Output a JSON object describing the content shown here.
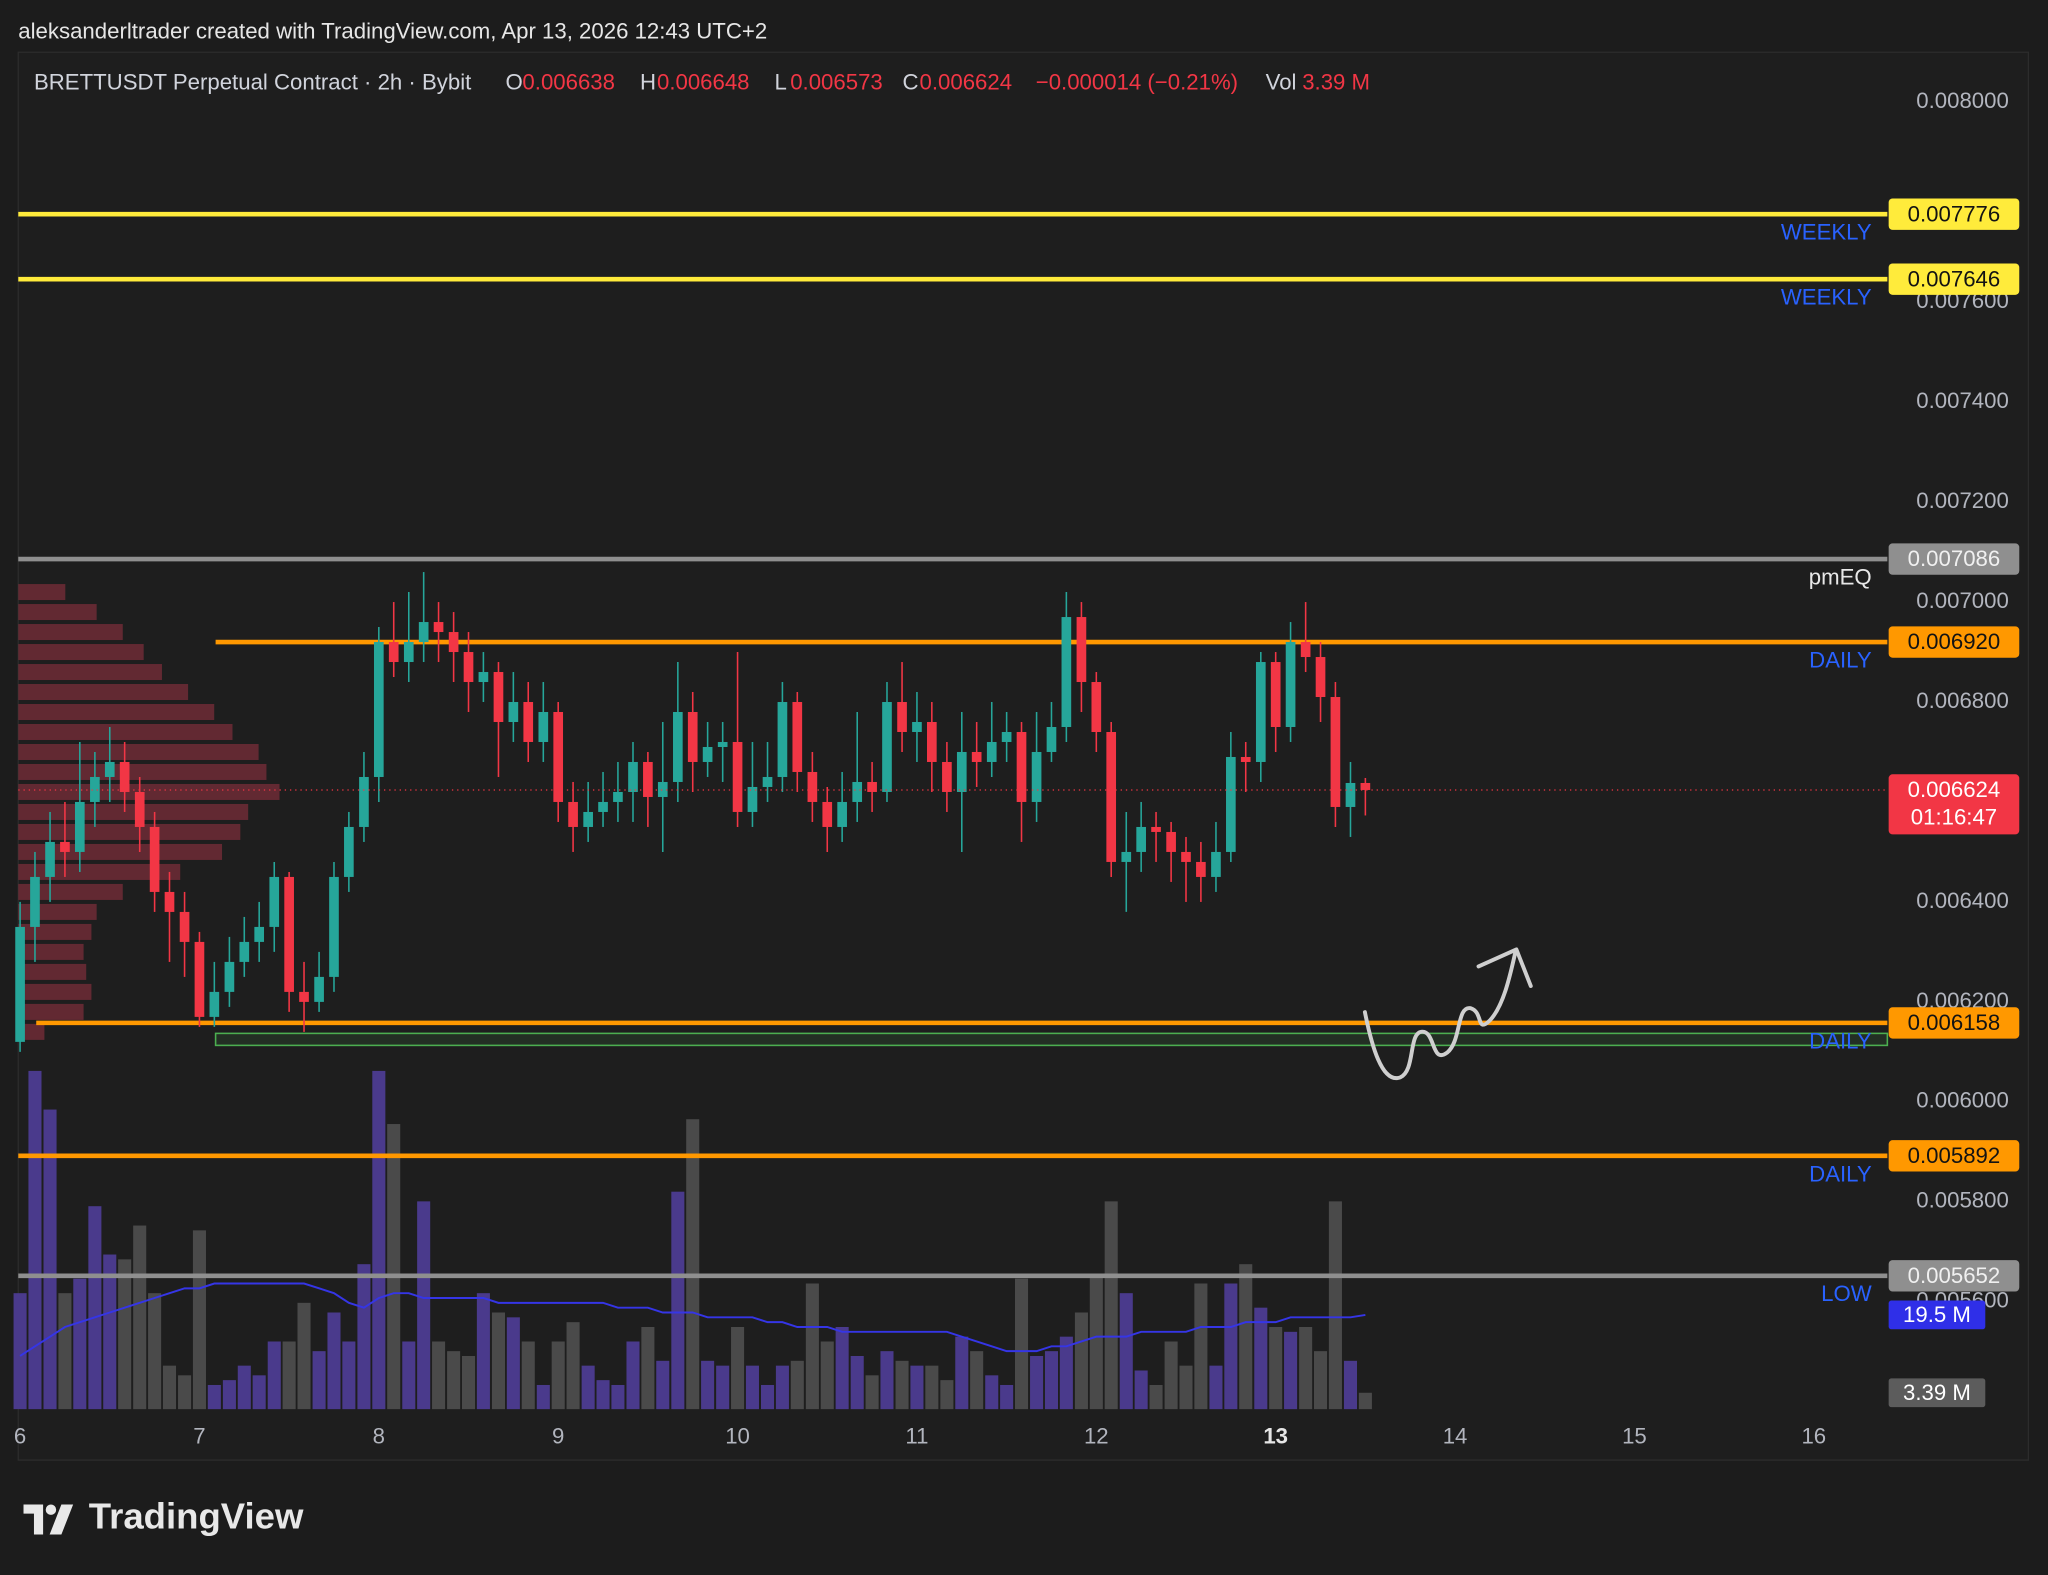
{
  "header": {
    "credit": "aleksanderltrader created with TradingView.com, Apr 13, 2026 12:43 UTC+2",
    "symbol": "BRETTUSDT Perpetual Contract · 2h · Bybit",
    "keys": [
      "O",
      "H",
      "L",
      "C"
    ],
    "change": "−0.000014 (−0.21%)",
    "vol_key": "Vol"
  },
  "chart_data": {
    "type": "candlestick",
    "up_color": "#26a69a",
    "down_color": "#f23645",
    "x": [
      6,
      6.083,
      6.167,
      6.25,
      6.333,
      6.417,
      6.5,
      6.583,
      6.667,
      6.75,
      6.833,
      6.917,
      7,
      7.083,
      7.167,
      7.25,
      7.333,
      7.417,
      7.5,
      7.583,
      7.667,
      7.75,
      7.833,
      7.917,
      8,
      8.083,
      8.167,
      8.25,
      8.333,
      8.417,
      8.5,
      8.583,
      8.667,
      8.75,
      8.833,
      8.917,
      9,
      9.083,
      9.167,
      9.25,
      9.333,
      9.417,
      9.5,
      9.583,
      9.667,
      9.75,
      9.833,
      9.917,
      10,
      10.083,
      10.167,
      10.25,
      10.333,
      10.417,
      10.5,
      10.583,
      10.667,
      10.75,
      10.833,
      10.917,
      11,
      11.083,
      11.167,
      11.25,
      11.333,
      11.417,
      11.5,
      11.583,
      11.667,
      11.75,
      11.833,
      11.917,
      12,
      12.083,
      12.167,
      12.25,
      12.333,
      12.417,
      12.5,
      12.583,
      12.667,
      12.75,
      12.833,
      12.917,
      13,
      13.083,
      13.167,
      13.25,
      13.333,
      13.417,
      13.5
    ],
    "open": [
      0.00612,
      0.00635,
      0.00645,
      0.00652,
      0.0065,
      0.0066,
      0.00665,
      0.00668,
      0.00662,
      0.00655,
      0.00642,
      0.00638,
      0.00632,
      0.00617,
      0.00622,
      0.00628,
      0.00632,
      0.00635,
      0.00645,
      0.00622,
      0.0062,
      0.00625,
      0.00645,
      0.00655,
      0.00665,
      0.00692,
      0.00688,
      0.00692,
      0.00696,
      0.00694,
      0.0069,
      0.00684,
      0.00686,
      0.00676,
      0.0068,
      0.00672,
      0.00678,
      0.0066,
      0.00655,
      0.00658,
      0.0066,
      0.00662,
      0.00668,
      0.00661,
      0.00664,
      0.00678,
      0.00668,
      0.00671,
      0.00672,
      0.00658,
      0.00663,
      0.00665,
      0.0068,
      0.00666,
      0.0066,
      0.00655,
      0.0066,
      0.00664,
      0.00662,
      0.0068,
      0.00674,
      0.00676,
      0.00668,
      0.00662,
      0.0067,
      0.00668,
      0.00672,
      0.00674,
      0.0066,
      0.0067,
      0.00675,
      0.00697,
      0.00684,
      0.00674,
      0.00648,
      0.0065,
      0.00655,
      0.00654,
      0.0065,
      0.00648,
      0.00645,
      0.0065,
      0.00669,
      0.00668,
      0.00688,
      0.00675,
      0.00692,
      0.00689,
      0.00681,
      0.00659,
      0.006638
    ],
    "high": [
      0.0064,
      0.0065,
      0.00658,
      0.0066,
      0.00672,
      0.0067,
      0.00675,
      0.00672,
      0.00665,
      0.00658,
      0.00646,
      0.00642,
      0.00634,
      0.00628,
      0.00633,
      0.00637,
      0.0064,
      0.00648,
      0.00646,
      0.00628,
      0.0063,
      0.00648,
      0.00658,
      0.0067,
      0.00695,
      0.007,
      0.00702,
      0.00706,
      0.007,
      0.00698,
      0.00694,
      0.0069,
      0.00688,
      0.00686,
      0.00684,
      0.00684,
      0.0068,
      0.00664,
      0.00664,
      0.00666,
      0.00668,
      0.00672,
      0.0067,
      0.00676,
      0.00688,
      0.00682,
      0.00676,
      0.00676,
      0.0069,
      0.00672,
      0.00672,
      0.00684,
      0.00682,
      0.0067,
      0.00663,
      0.00666,
      0.00678,
      0.00668,
      0.00684,
      0.00688,
      0.00682,
      0.0068,
      0.00672,
      0.00678,
      0.00676,
      0.0068,
      0.00678,
      0.00676,
      0.00678,
      0.0068,
      0.00702,
      0.007,
      0.00686,
      0.00676,
      0.00658,
      0.0066,
      0.00658,
      0.00656,
      0.00653,
      0.00652,
      0.00656,
      0.00674,
      0.00672,
      0.0069,
      0.0069,
      0.00696,
      0.007,
      0.00692,
      0.00684,
      0.00668,
      0.006648
    ],
    "low": [
      0.0061,
      0.00628,
      0.0064,
      0.00645,
      0.00646,
      0.00655,
      0.0066,
      0.00658,
      0.0065,
      0.00638,
      0.00628,
      0.00625,
      0.00615,
      0.00615,
      0.00619,
      0.00625,
      0.00628,
      0.0063,
      0.00618,
      0.00614,
      0.00618,
      0.00622,
      0.00642,
      0.00652,
      0.0066,
      0.00685,
      0.00684,
      0.00688,
      0.00688,
      0.00684,
      0.00678,
      0.0068,
      0.00665,
      0.00672,
      0.00668,
      0.00668,
      0.00656,
      0.0065,
      0.00652,
      0.00655,
      0.00656,
      0.00656,
      0.00655,
      0.0065,
      0.0066,
      0.00662,
      0.00665,
      0.00664,
      0.00655,
      0.00655,
      0.0066,
      0.00662,
      0.00662,
      0.00656,
      0.0065,
      0.00652,
      0.00656,
      0.00658,
      0.0066,
      0.0067,
      0.00668,
      0.00662,
      0.00658,
      0.0065,
      0.00663,
      0.00665,
      0.00668,
      0.00652,
      0.00656,
      0.00668,
      0.00672,
      0.00678,
      0.0067,
      0.00645,
      0.00638,
      0.00646,
      0.00648,
      0.00644,
      0.0064,
      0.0064,
      0.00642,
      0.00648,
      0.00662,
      0.00664,
      0.0067,
      0.00672,
      0.00686,
      0.00676,
      0.00655,
      0.00653,
      0.006573
    ],
    "close": [
      0.00635,
      0.00645,
      0.00652,
      0.0065,
      0.0066,
      0.00665,
      0.00668,
      0.00662,
      0.00655,
      0.00642,
      0.00638,
      0.00632,
      0.00617,
      0.00622,
      0.00628,
      0.00632,
      0.00635,
      0.00645,
      0.00622,
      0.0062,
      0.00625,
      0.00645,
      0.00655,
      0.00665,
      0.00692,
      0.00688,
      0.00692,
      0.00696,
      0.00694,
      0.0069,
      0.00684,
      0.00686,
      0.00676,
      0.0068,
      0.00672,
      0.00678,
      0.0066,
      0.00655,
      0.00658,
      0.0066,
      0.00662,
      0.00668,
      0.00661,
      0.00664,
      0.00678,
      0.00668,
      0.00671,
      0.00672,
      0.00658,
      0.00663,
      0.00665,
      0.0068,
      0.00666,
      0.0066,
      0.00655,
      0.0066,
      0.00664,
      0.00662,
      0.0068,
      0.00674,
      0.00676,
      0.00668,
      0.00662,
      0.0067,
      0.00668,
      0.00672,
      0.00674,
      0.0066,
      0.0067,
      0.00675,
      0.00697,
      0.00684,
      0.00674,
      0.00648,
      0.0065,
      0.00655,
      0.00654,
      0.0065,
      0.00648,
      0.00645,
      0.0065,
      0.00669,
      0.00668,
      0.00688,
      0.00675,
      0.00692,
      0.00689,
      0.00681,
      0.00659,
      0.006638,
      0.006624
    ],
    "countdown": "01:16:47",
    "volume": {
      "values": [
        24,
        70,
        62,
        24,
        27,
        42,
        32,
        31,
        38,
        24,
        9,
        7,
        37,
        5,
        6,
        9,
        7,
        14,
        14,
        22,
        12,
        20,
        14,
        30,
        70,
        59,
        14,
        43,
        14,
        12,
        11,
        24,
        20,
        19,
        14,
        5,
        14,
        18,
        9,
        6,
        5,
        14,
        17,
        10,
        45,
        60,
        10,
        9,
        17,
        9,
        5,
        9,
        10,
        26,
        14,
        17,
        11,
        7,
        12,
        10,
        9,
        9,
        6,
        15,
        12,
        7,
        5,
        27,
        11,
        12,
        15,
        20,
        28,
        43,
        24,
        8,
        5,
        14,
        9,
        26,
        9,
        26,
        30,
        21,
        17,
        16,
        17,
        12,
        43,
        10,
        3.39
      ],
      "last_label": "3.39 M",
      "ma_values": [
        11,
        13,
        15,
        17,
        18,
        19,
        20,
        21,
        22,
        23,
        24,
        25,
        25,
        26,
        26,
        26,
        26,
        26,
        26,
        26,
        25,
        24,
        22,
        21,
        23,
        24,
        24,
        23,
        23,
        23,
        23,
        23,
        22,
        22,
        22,
        22,
        22,
        22,
        22,
        22,
        21,
        21,
        21,
        20,
        20,
        20,
        19,
        19,
        19,
        19,
        18,
        18,
        17,
        17,
        17,
        16,
        16,
        16,
        16,
        16,
        16,
        16,
        16,
        15,
        14,
        13,
        12,
        12,
        12,
        13,
        13,
        14,
        15,
        15,
        15,
        16,
        16,
        16,
        16,
        17,
        17,
        17,
        18,
        18,
        18,
        19,
        19,
        19,
        19,
        19,
        19.5
      ],
      "ma_last_label": "19.5 M",
      "ylim": [
        0,
        70
      ],
      "up_color": "#4a3a8c",
      "down_color": "#4a4a4a",
      "ma_color": "#3535e6",
      "ma_box_color": "#2f2fe8",
      "last_box_color": "#5c5c5c"
    },
    "volume_profile": {
      "prices": [
        0.00614,
        0.00618,
        0.00622,
        0.00626,
        0.0063,
        0.00634,
        0.00638,
        0.00642,
        0.00646,
        0.0065,
        0.00654,
        0.00658,
        0.00662,
        0.00666,
        0.0067,
        0.00674,
        0.00678,
        0.00682,
        0.00686,
        0.0069,
        0.00694,
        0.00698,
        0.00702
      ],
      "values": [
        10,
        25,
        28,
        26,
        25,
        28,
        30,
        40,
        62,
        78,
        85,
        88,
        100,
        95,
        92,
        82,
        75,
        65,
        55,
        48,
        40,
        30,
        18
      ],
      "xlim": [
        0,
        100
      ],
      "color": "#7a2e3a"
    },
    "levels": [
      {
        "name": "WEEKLY",
        "value": 0.007776,
        "value_label": "0.007776",
        "from": 5.99,
        "color": "#ffeb3b",
        "text_color": "#131313",
        "name_color": "#2962ff"
      },
      {
        "name": "WEEKLY",
        "value": 0.007646,
        "value_label": "0.007646",
        "from": 5.99,
        "color": "#ffeb3b",
        "text_color": "#131313",
        "name_color": "#2962ff"
      },
      {
        "name": "pmEQ",
        "value": 0.007086,
        "value_label": "0.007086",
        "from": 5.99,
        "color": "#8f8f8f",
        "text_color": "#f0f0f0",
        "name_color": "#e8e8e8"
      },
      {
        "name": "DAILY",
        "value": 0.00692,
        "value_label": "0.006920",
        "from": 7.09,
        "color": "#ff9800",
        "text_color": "#131313",
        "name_color": "#2962ff"
      },
      {
        "name": "DAILY",
        "value": 0.006158,
        "value_label": "0.006158",
        "from": 6.09,
        "color": "#ff9800",
        "text_color": "#131313",
        "name_color": "#2962ff"
      },
      {
        "name": "DAILY",
        "value": 0.005892,
        "value_label": "0.005892",
        "from": 5.99,
        "color": "#ff9800",
        "text_color": "#131313",
        "name_color": "#2962ff"
      },
      {
        "name": "LOW",
        "value": 0.005652,
        "value_label": "0.005652",
        "from": 5.99,
        "color": "#8f8f8f",
        "text_color": "#f0f0f0",
        "name_color": "#2962ff"
      }
    ],
    "zone": {
      "top": 0.006137,
      "bottom": 0.006113,
      "from": 7.09,
      "color": "#4caf50"
    },
    "xlim": [
      5.99,
      16.41
    ],
    "ylim": [
      0.00538,
      0.0081
    ],
    "xticks": [
      6,
      7,
      8,
      9,
      10,
      11,
      12,
      13,
      14,
      15,
      16
    ],
    "xtick_bold": 13,
    "yticks": [
      {
        "value": 0.008,
        "label": "0.008000"
      },
      {
        "value": 0.0076,
        "label": "0.007600"
      },
      {
        "value": 0.0074,
        "label": "0.007400"
      },
      {
        "value": 0.0072,
        "label": "0.007200"
      },
      {
        "value": 0.007,
        "label": "0.007000"
      },
      {
        "value": 0.0068,
        "label": "0.006800"
      },
      {
        "value": 0.0064,
        "label": "0.006400"
      },
      {
        "value": 0.0062,
        "label": "0.006200"
      },
      {
        "value": 0.006,
        "label": "0.006000"
      },
      {
        "value": 0.0058,
        "label": "0.005800"
      },
      {
        "value": 0.0056,
        "label": "0.005600"
      }
    ],
    "grid": false
  },
  "footer": {
    "brand": "TradingView"
  }
}
